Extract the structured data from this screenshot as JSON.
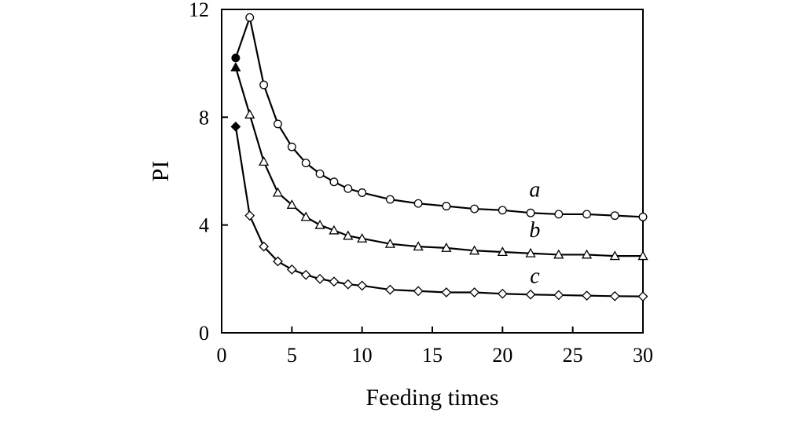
{
  "chart_data": {
    "type": "line",
    "title": "",
    "xlabel": "Feeding times",
    "ylabel": "PI",
    "xlim": [
      0,
      30
    ],
    "ylim": [
      0,
      12
    ],
    "xticks": [
      0,
      5,
      10,
      15,
      20,
      25,
      30
    ],
    "yticks": [
      0,
      4,
      8,
      12
    ],
    "xtick_labels": [
      "0",
      "5",
      "10",
      "15",
      "20",
      "25",
      "30"
    ],
    "ytick_labels": [
      "0",
      "4",
      "8",
      "12"
    ],
    "grid": false,
    "legend": "inline labels near line ends",
    "series": [
      {
        "name": "a",
        "marker": "circle",
        "first_point_filled": true,
        "x": [
          1,
          2,
          3,
          4,
          5,
          6,
          7,
          8,
          9,
          10,
          12,
          14,
          16,
          18,
          20,
          22,
          24,
          26,
          28,
          30
        ],
        "y": [
          10.2,
          11.7,
          9.2,
          7.75,
          6.9,
          6.3,
          5.9,
          5.6,
          5.35,
          5.2,
          4.95,
          4.8,
          4.7,
          4.6,
          4.55,
          4.45,
          4.4,
          4.4,
          4.35,
          4.3
        ]
      },
      {
        "name": "b",
        "marker": "triangle",
        "first_point_filled": true,
        "x": [
          1,
          2,
          3,
          4,
          5,
          6,
          7,
          8,
          9,
          10,
          12,
          14,
          16,
          18,
          20,
          22,
          24,
          26,
          28,
          30
        ],
        "y": [
          9.85,
          8.1,
          6.35,
          5.2,
          4.75,
          4.3,
          4.0,
          3.8,
          3.6,
          3.5,
          3.3,
          3.2,
          3.15,
          3.05,
          3.0,
          2.95,
          2.9,
          2.9,
          2.85,
          2.85
        ]
      },
      {
        "name": "c",
        "marker": "diamond",
        "first_point_filled": true,
        "x": [
          1,
          2,
          3,
          4,
          5,
          6,
          7,
          8,
          9,
          10,
          12,
          14,
          16,
          18,
          20,
          22,
          24,
          26,
          28,
          30
        ],
        "y": [
          7.65,
          4.35,
          3.2,
          2.65,
          2.35,
          2.15,
          2.0,
          1.9,
          1.8,
          1.75,
          1.6,
          1.55,
          1.5,
          1.5,
          1.45,
          1.42,
          1.4,
          1.38,
          1.36,
          1.35
        ]
      }
    ],
    "series_labels": [
      "a",
      "b",
      "c"
    ],
    "colors": {
      "line": "#000000",
      "marker_fill": "#ffffff",
      "background": "#ffffff"
    }
  }
}
